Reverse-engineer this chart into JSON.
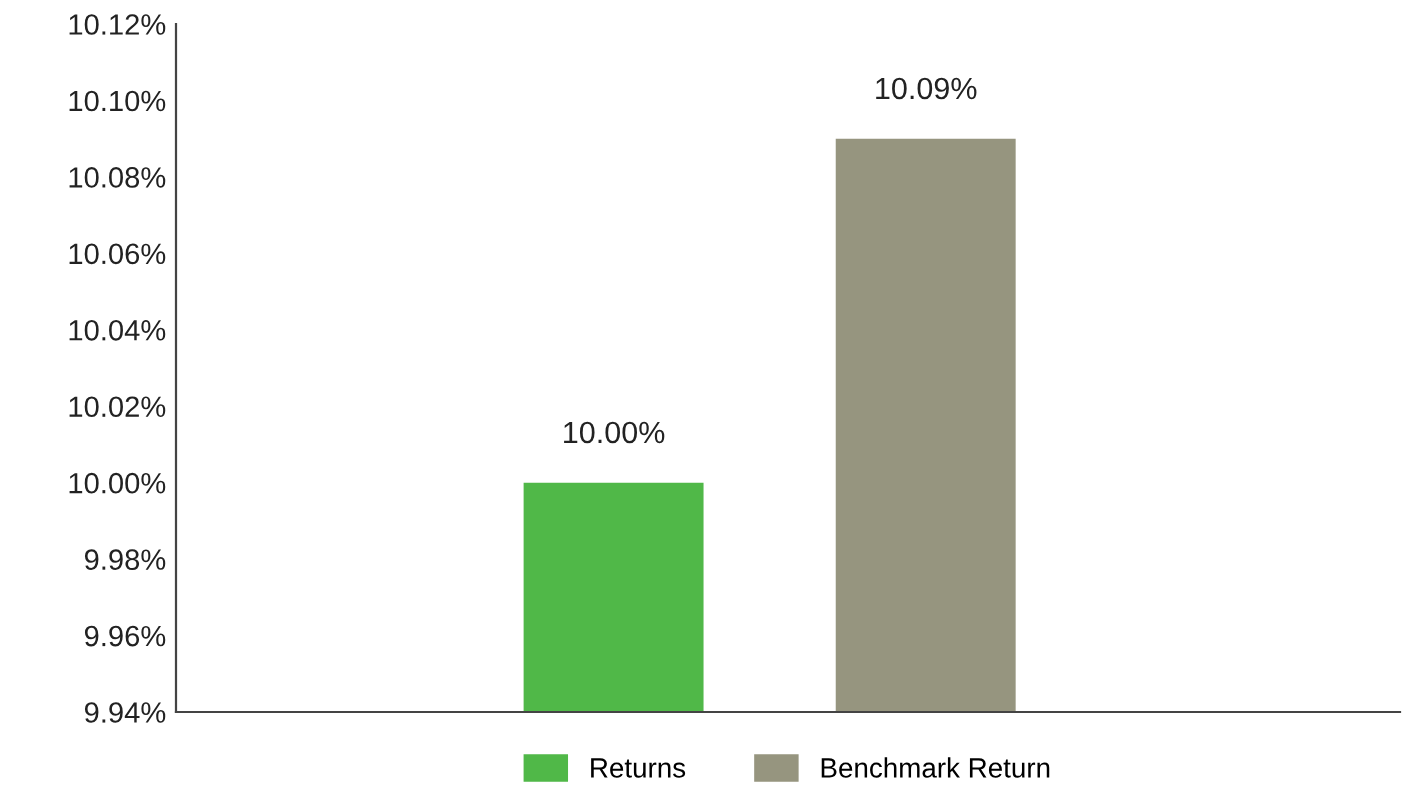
{
  "chart_data": {
    "type": "bar",
    "categories": [
      null
    ],
    "series": [
      {
        "name": "Returns",
        "color": "#50b848",
        "values": [
          10.0
        ],
        "value_labels": [
          "10.00%"
        ]
      },
      {
        "name": "Benchmark Return",
        "color": "#96957f",
        "values": [
          10.09
        ],
        "value_labels": [
          "10.09%"
        ]
      }
    ],
    "ylim": [
      9.94,
      10.12
    ],
    "yticks": [
      {
        "value": 9.94,
        "label": "9.94%"
      },
      {
        "value": 9.96,
        "label": "9.96%"
      },
      {
        "value": 9.98,
        "label": "9.98%"
      },
      {
        "value": 10.0,
        "label": "10.00%"
      },
      {
        "value": 10.02,
        "label": "10.02%"
      },
      {
        "value": 10.04,
        "label": "10.04%"
      },
      {
        "value": 10.06,
        "label": "10.06%"
      },
      {
        "value": 10.08,
        "label": "10.08%"
      },
      {
        "value": 10.1,
        "label": "10.10%"
      },
      {
        "value": 10.12,
        "label": "10.12%"
      }
    ],
    "grid": false,
    "legend": "bottom"
  }
}
